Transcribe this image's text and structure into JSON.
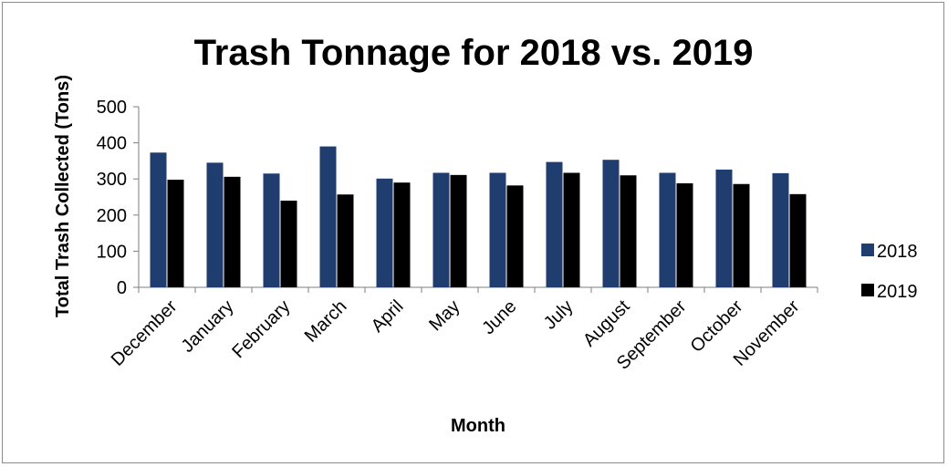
{
  "chart_data": {
    "type": "bar",
    "title": "Trash Tonnage for 2018 vs. 2019",
    "xlabel": "Month",
    "ylabel": "Total Trash Collected (Tons)",
    "categories": [
      "December",
      "January",
      "February",
      "March",
      "April",
      "May",
      "June",
      "July",
      "August",
      "September",
      "October",
      "November"
    ],
    "series": [
      {
        "name": "2018",
        "color": "#1f3d6e",
        "values": [
          373,
          345,
          315,
          390,
          301,
          317,
          317,
          347,
          353,
          317,
          326,
          316
        ]
      },
      {
        "name": "2019",
        "color": "#000000",
        "values": [
          298,
          306,
          240,
          257,
          290,
          311,
          282,
          317,
          310,
          288,
          286,
          258
        ]
      }
    ],
    "ylim": [
      0,
      500
    ],
    "yticks": [
      0,
      100,
      200,
      300,
      400,
      500
    ],
    "grid": false,
    "legend_position": "right"
  }
}
